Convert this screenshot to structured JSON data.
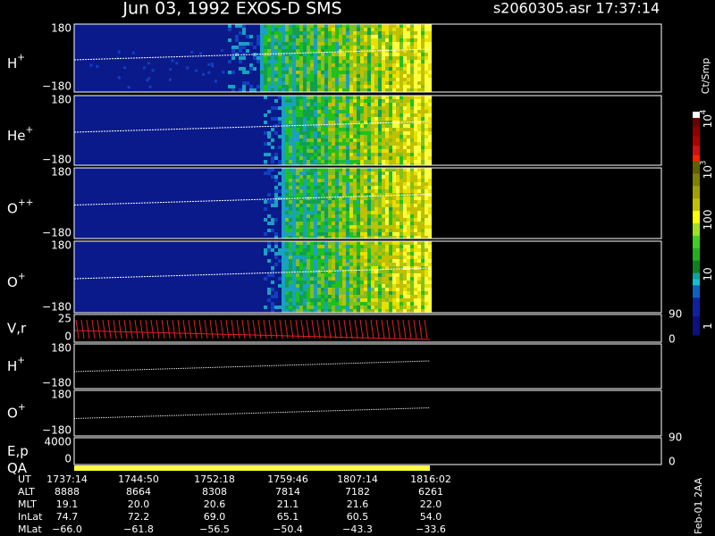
{
  "header": {
    "title": "Jun 03, 1992    EXOS-D SMS",
    "file": "s2060305.asr  17:37:14"
  },
  "panels": [
    {
      "label": {
        "base": "H",
        "sup": "+"
      },
      "yticks": [
        "180",
        "−180"
      ]
    },
    {
      "label": {
        "base": "He",
        "sup": "+"
      },
      "yticks": [
        "180",
        "−180"
      ]
    },
    {
      "label": {
        "base": "O",
        "sup": "++"
      },
      "yticks": [
        "180",
        "−180"
      ]
    },
    {
      "label": {
        "base": "O",
        "sup": "+"
      },
      "yticks": [
        "180",
        "−180"
      ]
    },
    {
      "label": {
        "base": "V,r"
      },
      "yticks": [
        "25",
        "0"
      ],
      "rticks": [
        "90",
        "0"
      ]
    },
    {
      "label": {
        "base": "H",
        "sup": "+"
      },
      "yticks": [
        "180",
        "−180"
      ]
    },
    {
      "label": {
        "base": "O",
        "sup": "+"
      },
      "yticks": [
        "180",
        "−180"
      ]
    },
    {
      "label": {
        "base": "E,p"
      },
      "yticks": [
        "4000",
        "0"
      ],
      "rticks": [
        "90",
        "0"
      ]
    },
    {
      "label": {
        "base": "QA"
      }
    }
  ],
  "colorbar": {
    "unit": "Ct/Smp",
    "labels": [
      {
        "base": "10",
        "sup": "4"
      },
      {
        "base": "10",
        "sup": "3"
      },
      {
        "base": "100"
      },
      {
        "base": "10"
      },
      {
        "base": "1"
      }
    ]
  },
  "ephemeris": {
    "rows": [
      [
        "UT",
        "1737:14",
        "1744:50",
        "1752:18",
        "1759:46",
        "1807:14",
        "1816:02"
      ],
      [
        "ALT",
        "8888",
        "8664",
        "8308",
        "7814",
        "7182",
        "6261"
      ],
      [
        "MLT",
        "19.1",
        "20.0",
        "20.6",
        "21.1",
        "21.6",
        "22.0"
      ],
      [
        "InLat",
        "74.7",
        "72.2",
        "69.0",
        "65.1",
        "60.5",
        "54.0"
      ],
      [
        "MLat",
        "−66.0",
        "−61.8",
        "−56.5",
        "−50.4",
        "−43.3",
        "−33.6"
      ]
    ]
  },
  "footnote": "Feb-01 2AA"
}
